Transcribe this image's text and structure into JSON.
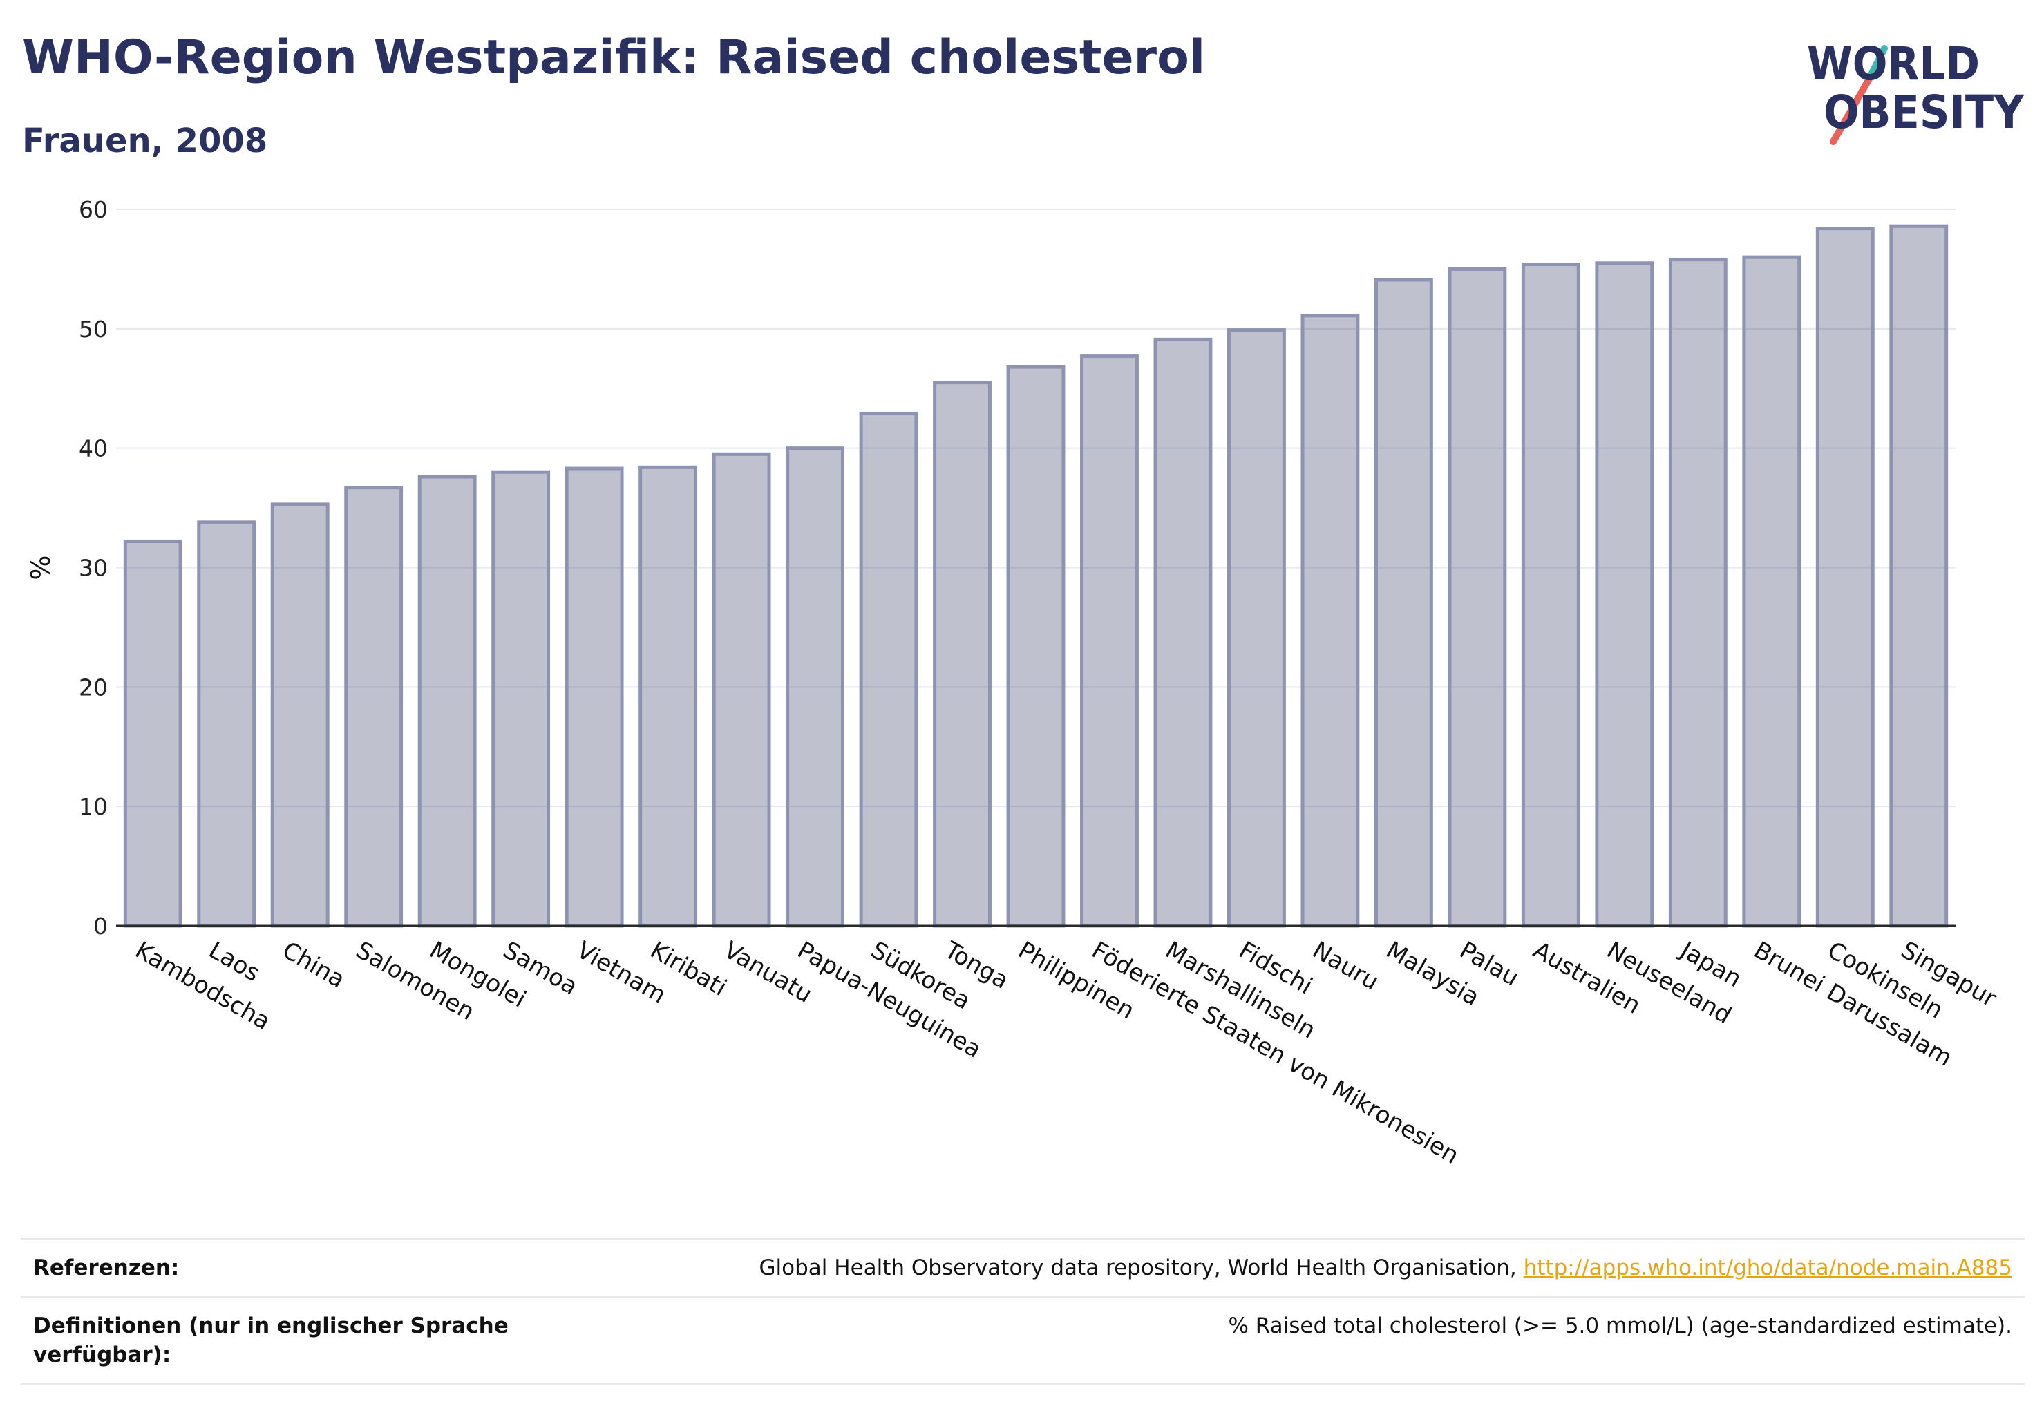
{
  "header": {
    "title": "WHO-Region Westpazifik: Raised cholesterol",
    "subtitle": "Frauen, 2008"
  },
  "logo": {
    "line1": "WORLD",
    "line2": "OBESITY",
    "colors": {
      "text": "#2a3160",
      "slash_top": "#3fb8b0",
      "slash_bottom": "#e8625a"
    }
  },
  "chart_data": {
    "type": "bar",
    "ylabel": "%",
    "ylim": [
      0,
      60
    ],
    "yticks": [
      0,
      10,
      20,
      30,
      40,
      50,
      60
    ],
    "grid": true,
    "bar_color": "#2a3160",
    "categories": [
      "Kambodscha",
      "Laos",
      "China",
      "Salomonen",
      "Mongolei",
      "Samoa",
      "Vietnam",
      "Kiribati",
      "Vanuatu",
      "Papua-Neuguinea",
      "Südkorea",
      "Tonga",
      "Philippinen",
      "Föderierte Staaten von Mikronesien",
      "Marshallinseln",
      "Fidschi",
      "Nauru",
      "Malaysia",
      "Palau",
      "Australien",
      "Neuseeland",
      "Japan",
      "Brunei Darussalam",
      "Cookinseln",
      "Singapur"
    ],
    "values": [
      32.2,
      33.8,
      35.3,
      36.7,
      37.6,
      38.0,
      38.3,
      38.4,
      39.5,
      40.0,
      42.9,
      45.5,
      46.8,
      47.7,
      49.1,
      49.9,
      51.1,
      54.1,
      55.0,
      55.4,
      55.5,
      55.8,
      56.0,
      58.4,
      58.6
    ]
  },
  "footer": {
    "references_label": "Referenzen:",
    "references_text": "Global Health Observatory data repository, World Health Organisation, ",
    "references_link": "http://apps.who.int/gho/data/node.main.A885",
    "definitions_label": "Definitionen (nur in englischer Sprache verfügbar):",
    "definitions_text": "% Raised total cholesterol (>= 5.0 mmol/L) (age-standardized estimate)."
  }
}
